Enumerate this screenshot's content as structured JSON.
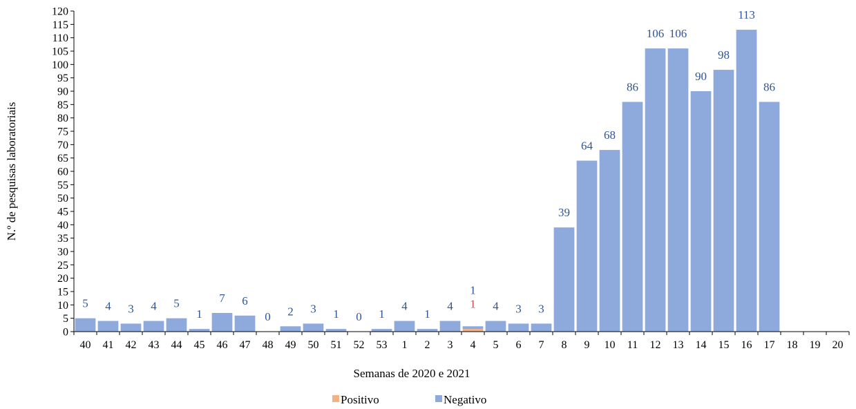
{
  "chart_data": {
    "type": "bar",
    "stacked": true,
    "categories": [
      "40",
      "41",
      "42",
      "43",
      "44",
      "45",
      "46",
      "47",
      "48",
      "49",
      "50",
      "51",
      "52",
      "53",
      "1",
      "2",
      "3",
      "4",
      "5",
      "6",
      "7",
      "8",
      "9",
      "10",
      "11",
      "12",
      "13",
      "14",
      "15",
      "16",
      "17",
      "18",
      "19",
      "20"
    ],
    "series": [
      {
        "name": "Positivo",
        "color": "#F4B183",
        "label_color": "#C0504D",
        "values": [
          0,
          0,
          0,
          0,
          0,
          0,
          0,
          0,
          0,
          0,
          0,
          0,
          0,
          0,
          0,
          0,
          0,
          1,
          0,
          0,
          0,
          0,
          0,
          0,
          0,
          0,
          0,
          0,
          0,
          0,
          0,
          null,
          null,
          null
        ],
        "data_labels": [
          null,
          null,
          null,
          null,
          null,
          null,
          null,
          null,
          null,
          null,
          null,
          null,
          null,
          null,
          null,
          null,
          null,
          "1",
          null,
          null,
          null,
          null,
          null,
          null,
          null,
          null,
          null,
          null,
          null,
          null,
          null,
          null,
          null,
          null
        ]
      },
      {
        "name": "Negativo",
        "color": "#8EA9DB",
        "label_color": "#2F5597",
        "values": [
          5,
          4,
          3,
          4,
          5,
          1,
          7,
          6,
          0,
          2,
          3,
          1,
          0,
          1,
          4,
          1,
          4,
          1,
          4,
          3,
          3,
          39,
          64,
          68,
          86,
          106,
          106,
          90,
          98,
          113,
          86,
          null,
          null,
          null
        ],
        "data_labels": [
          "5",
          "4",
          "3",
          "4",
          "5",
          "1",
          "7",
          "6",
          "0",
          "2",
          "3",
          "1",
          "0",
          "1",
          "4",
          "1",
          "4",
          "1",
          "4",
          "3",
          "3",
          "39",
          "64",
          "68",
          "86",
          "106",
          "106",
          "90",
          "98",
          "113",
          "86",
          null,
          null,
          null
        ]
      }
    ],
    "xlabel": "Semanas de 2020 e 2021",
    "ylabel": "N.º de pesquisas laboratoriais",
    "ylim": [
      0,
      120
    ],
    "ytick_step": 5,
    "grid": false,
    "legend_position": "bottom"
  }
}
